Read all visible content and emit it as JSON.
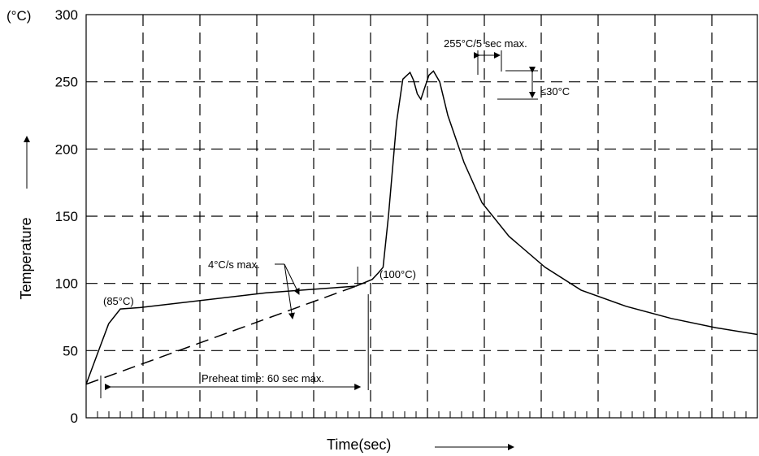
{
  "chart_data": {
    "type": "line",
    "xlabel": "Time(sec)",
    "ylabel": "Temperature",
    "y_unit": "(°C)",
    "ylim": [
      0,
      300
    ],
    "yticks": [
      0,
      50,
      100,
      150,
      200,
      250,
      300
    ],
    "grid": true,
    "series": [
      {
        "style": "solid",
        "points": [
          [
            0,
            25
          ],
          [
            15,
            52
          ],
          [
            25,
            70
          ],
          [
            38,
            81
          ],
          [
            60,
            82
          ],
          [
            200,
            93
          ],
          [
            300,
            98
          ],
          [
            318,
            103
          ],
          [
            325,
            108
          ],
          [
            330,
            112
          ],
          [
            336,
            150
          ],
          [
            345,
            220
          ],
          [
            352,
            252
          ],
          [
            360,
            257
          ],
          [
            364,
            251
          ],
          [
            368,
            241
          ],
          [
            372,
            237
          ],
          [
            376,
            245
          ],
          [
            381,
            255
          ],
          [
            386,
            258
          ],
          [
            393,
            250
          ],
          [
            402,
            225
          ],
          [
            420,
            190
          ],
          [
            440,
            160
          ],
          [
            470,
            135
          ],
          [
            510,
            112
          ],
          [
            550,
            95
          ],
          [
            600,
            83
          ],
          [
            650,
            74
          ],
          [
            700,
            67
          ],
          [
            746,
            62
          ]
        ]
      },
      {
        "style": "dashed",
        "points": [
          [
            0,
            25
          ],
          [
            300,
            98
          ]
        ]
      }
    ],
    "annotations": {
      "start_label": "(85°C)",
      "end_label": "(100°C)",
      "ramp_label": "4°C/s max.",
      "preheat_label": "Preheat time: 60 sec max.",
      "peak_label": "255°C/5 sec max.",
      "dip_label": "≤30°C"
    }
  }
}
